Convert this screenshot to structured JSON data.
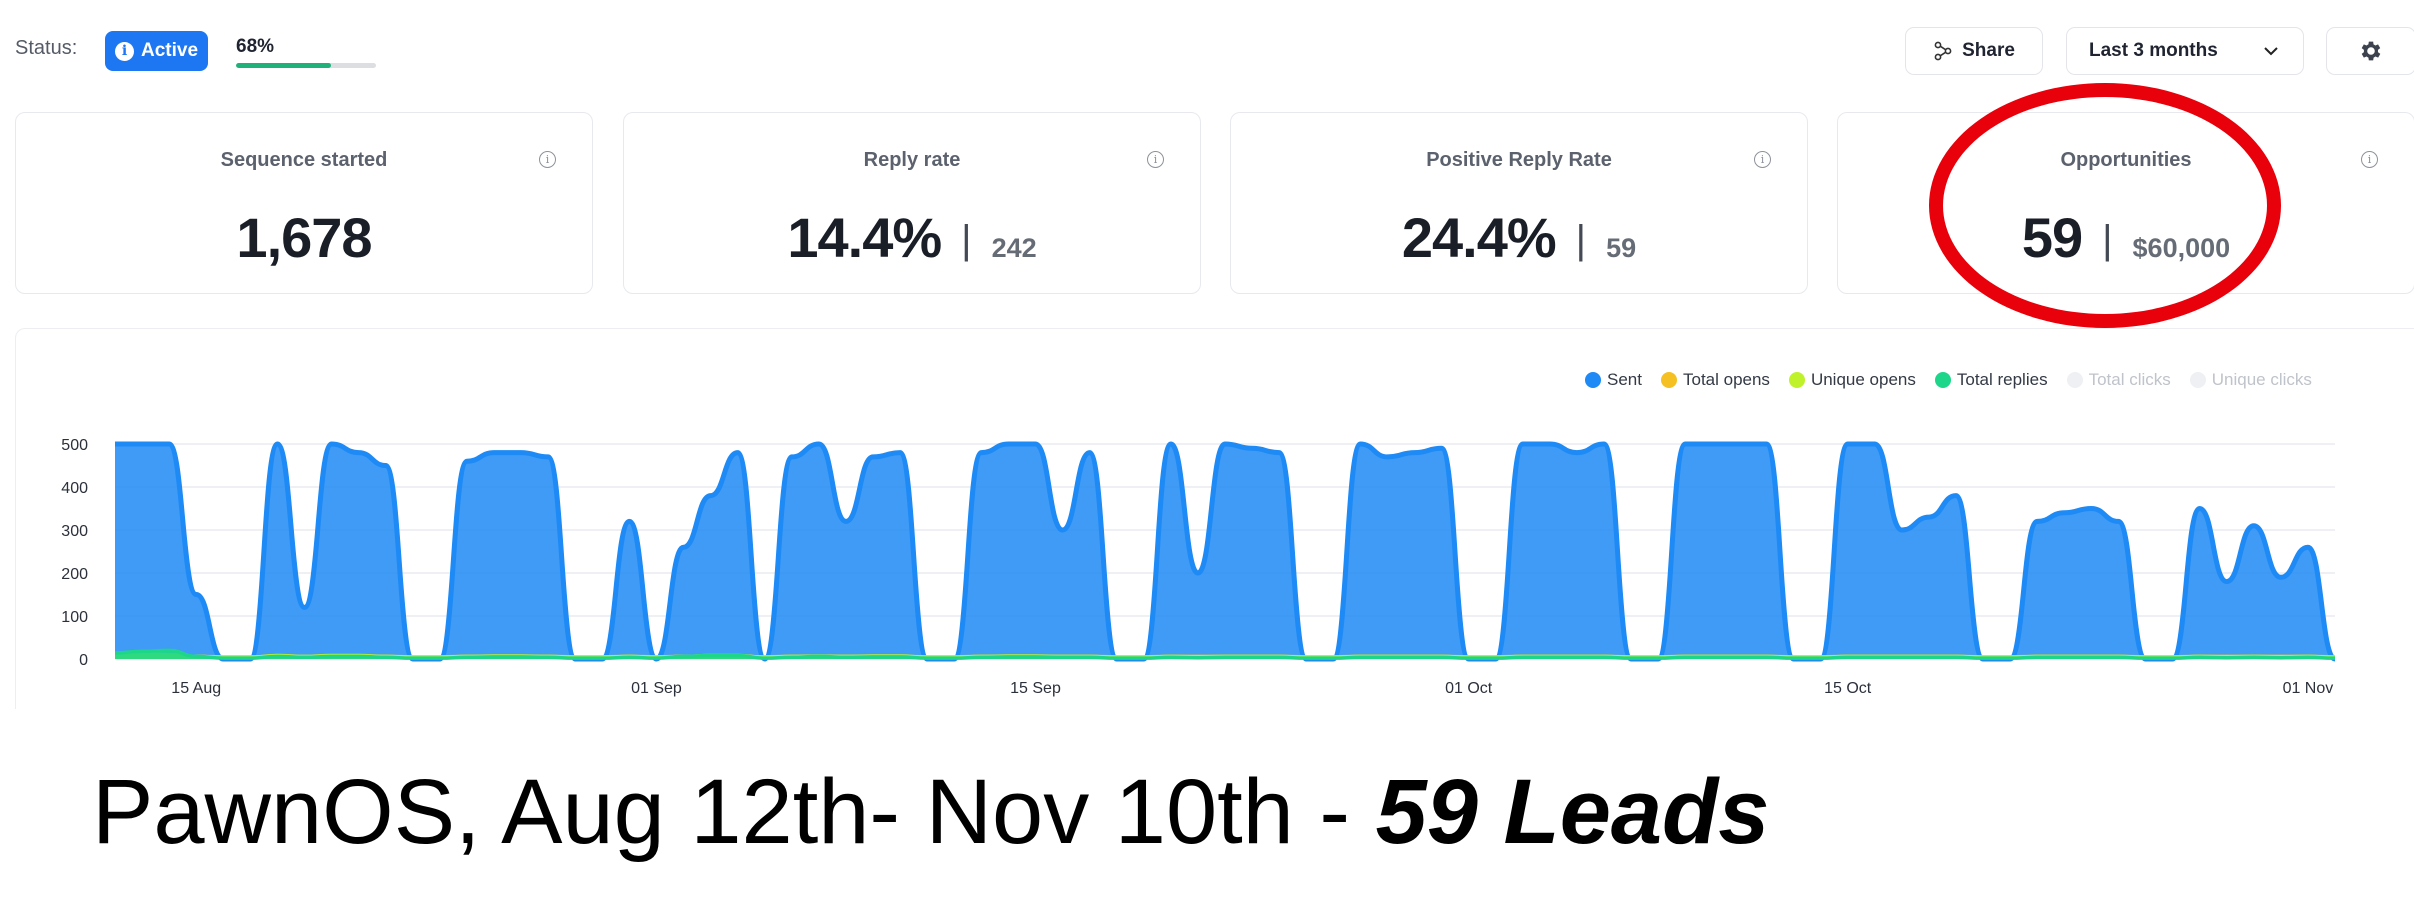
{
  "topbar": {
    "status_label": "Status:",
    "status_value": "Active",
    "progress_text": "68%",
    "progress_fraction": 0.68,
    "share_label": "Share",
    "range_label": "Last 3 months"
  },
  "cards": [
    {
      "title": "Sequence started",
      "value": "1,678",
      "secondary": ""
    },
    {
      "title": "Reply rate",
      "value": "14.4%",
      "secondary": "242"
    },
    {
      "title": "Positive Reply Rate",
      "value": "24.4%",
      "secondary": "59"
    },
    {
      "title": "Opportunities",
      "value": "59",
      "secondary": "$60,000"
    }
  ],
  "legend": [
    {
      "label": "Sent",
      "color": "#1d8af5",
      "faded": false
    },
    {
      "label": "Total opens",
      "color": "#f5c021",
      "faded": false
    },
    {
      "label": "Unique opens",
      "color": "#bff22a",
      "faded": false
    },
    {
      "label": "Total replies",
      "color": "#1ed68a",
      "faded": false
    },
    {
      "label": "Total clicks",
      "color": "#eef0f3",
      "faded": true
    },
    {
      "label": "Unique clicks",
      "color": "#eef0f3",
      "faded": true
    }
  ],
  "chart_data": {
    "type": "area",
    "x_tick_labels": [
      "15 Aug",
      "01 Sep",
      "15 Sep",
      "01 Oct",
      "15 Oct",
      "01 Nov"
    ],
    "x_tick_day_index": [
      3,
      20,
      34,
      50,
      64,
      81
    ],
    "y_ticks": [
      0,
      100,
      200,
      300,
      400,
      500
    ],
    "ylim": [
      0,
      520
    ],
    "x_start": "Aug 12",
    "grid": true,
    "legend_position": "top-right",
    "series": [
      {
        "name": "Sent",
        "color": "#1d8af5",
        "values": [
          500,
          500,
          500,
          150,
          0,
          0,
          500,
          120,
          500,
          480,
          450,
          0,
          0,
          460,
          480,
          480,
          470,
          0,
          0,
          320,
          0,
          260,
          380,
          480,
          0,
          470,
          500,
          320,
          470,
          480,
          0,
          0,
          480,
          500,
          500,
          300,
          480,
          0,
          0,
          500,
          200,
          500,
          490,
          480,
          0,
          0,
          500,
          470,
          480,
          490,
          0,
          0,
          500,
          500,
          480,
          500,
          0,
          0,
          500,
          500,
          500,
          500,
          0,
          0,
          500,
          500,
          300,
          330,
          380,
          0,
          0,
          320,
          340,
          350,
          320,
          0,
          0,
          350,
          180,
          310,
          190,
          260,
          0
        ]
      },
      {
        "name": "Total opens",
        "color": "#f5c021",
        "values": [
          8,
          8,
          8,
          6,
          5,
          5,
          6,
          5,
          6,
          6,
          6,
          5,
          5,
          6,
          6,
          6,
          6,
          5,
          5,
          6,
          5,
          6,
          6,
          6,
          5,
          6,
          6,
          6,
          6,
          6,
          5,
          5,
          6,
          6,
          6,
          6,
          6,
          5,
          5,
          6,
          6,
          6,
          6,
          6,
          5,
          5,
          6,
          6,
          6,
          6,
          5,
          5,
          6,
          6,
          6,
          6,
          5,
          5,
          6,
          6,
          6,
          6,
          5,
          5,
          6,
          6,
          6,
          6,
          6,
          5,
          5,
          6,
          6,
          6,
          6,
          5,
          5,
          6,
          6,
          6,
          6,
          6,
          5
        ]
      },
      {
        "name": "Unique opens",
        "color": "#bff22a",
        "values": [
          10,
          12,
          10,
          6,
          4,
          4,
          8,
          6,
          8,
          8,
          6,
          4,
          4,
          6,
          7,
          7,
          6,
          4,
          4,
          6,
          4,
          6,
          8,
          8,
          4,
          6,
          7,
          6,
          7,
          7,
          4,
          4,
          6,
          7,
          7,
          6,
          6,
          4,
          4,
          6,
          5,
          6,
          6,
          6,
          4,
          4,
          6,
          6,
          6,
          6,
          4,
          4,
          6,
          6,
          6,
          6,
          4,
          4,
          6,
          6,
          6,
          6,
          4,
          4,
          6,
          6,
          6,
          6,
          6,
          4,
          4,
          6,
          6,
          6,
          6,
          4,
          4,
          6,
          5,
          6,
          5,
          6,
          4
        ]
      },
      {
        "name": "Total replies",
        "color": "#1ed68a",
        "values": [
          14,
          18,
          20,
          6,
          2,
          2,
          6,
          4,
          6,
          6,
          4,
          2,
          2,
          4,
          5,
          5,
          4,
          2,
          2,
          4,
          2,
          6,
          8,
          8,
          2,
          4,
          6,
          4,
          5,
          5,
          2,
          2,
          4,
          5,
          5,
          4,
          4,
          2,
          2,
          4,
          3,
          4,
          4,
          4,
          2,
          2,
          4,
          4,
          4,
          4,
          2,
          2,
          4,
          4,
          4,
          4,
          2,
          2,
          4,
          4,
          4,
          4,
          2,
          2,
          4,
          4,
          4,
          4,
          4,
          2,
          2,
          4,
          4,
          4,
          4,
          2,
          2,
          4,
          3,
          4,
          3,
          4,
          2
        ]
      }
    ]
  },
  "caption": {
    "main": "PawnOS, Aug 12th- Nov 10th - ",
    "emphasis": "59 Leads"
  }
}
